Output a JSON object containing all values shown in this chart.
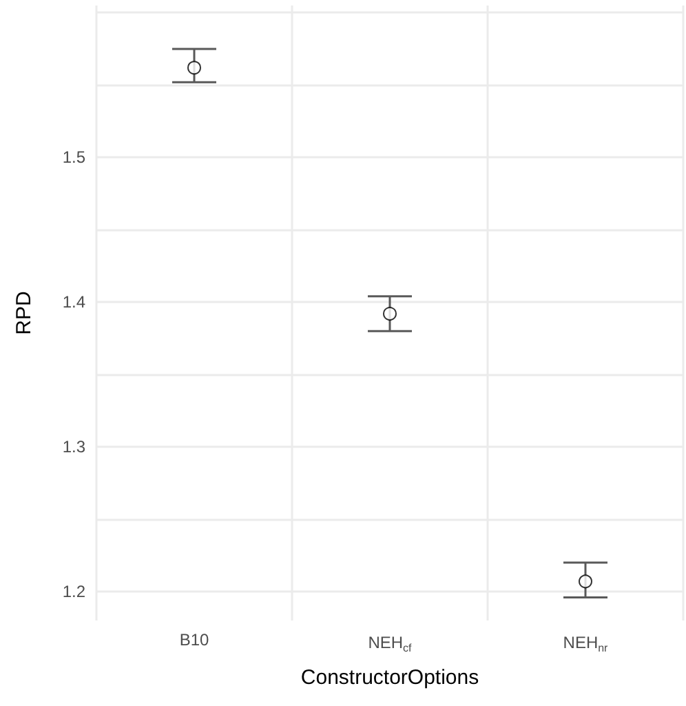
{
  "chart_data": {
    "type": "scatter",
    "xlabel": "ConstructorOptions",
    "ylabel": "RPD",
    "categories": [
      "B10",
      "NEH$_{cf}$",
      "NEH$_{nr}$"
    ],
    "series": [
      {
        "color": "#000000",
        "values": [
          1.562,
          1.392,
          1.207
        ],
        "errors": [
          [
            1.552,
            1.575
          ],
          [
            1.38,
            1.404
          ],
          [
            1.196,
            1.22
          ]
        ]
      }
    ],
    "ylim": [
      1.18,
      1.605
    ],
    "yticks": [
      1.2,
      {
        "value": 1.25,
        "label": null
      },
      1.3,
      {
        "value": 1.35,
        "label": null
      },
      1.4,
      {
        "value": 1.45,
        "label": null
      },
      1.5,
      {
        "value": 1.55,
        "label": null
      },
      {
        "value": 1.6,
        "label": null
      }
    ],
    "marker": "circle",
    "grid": true
  }
}
